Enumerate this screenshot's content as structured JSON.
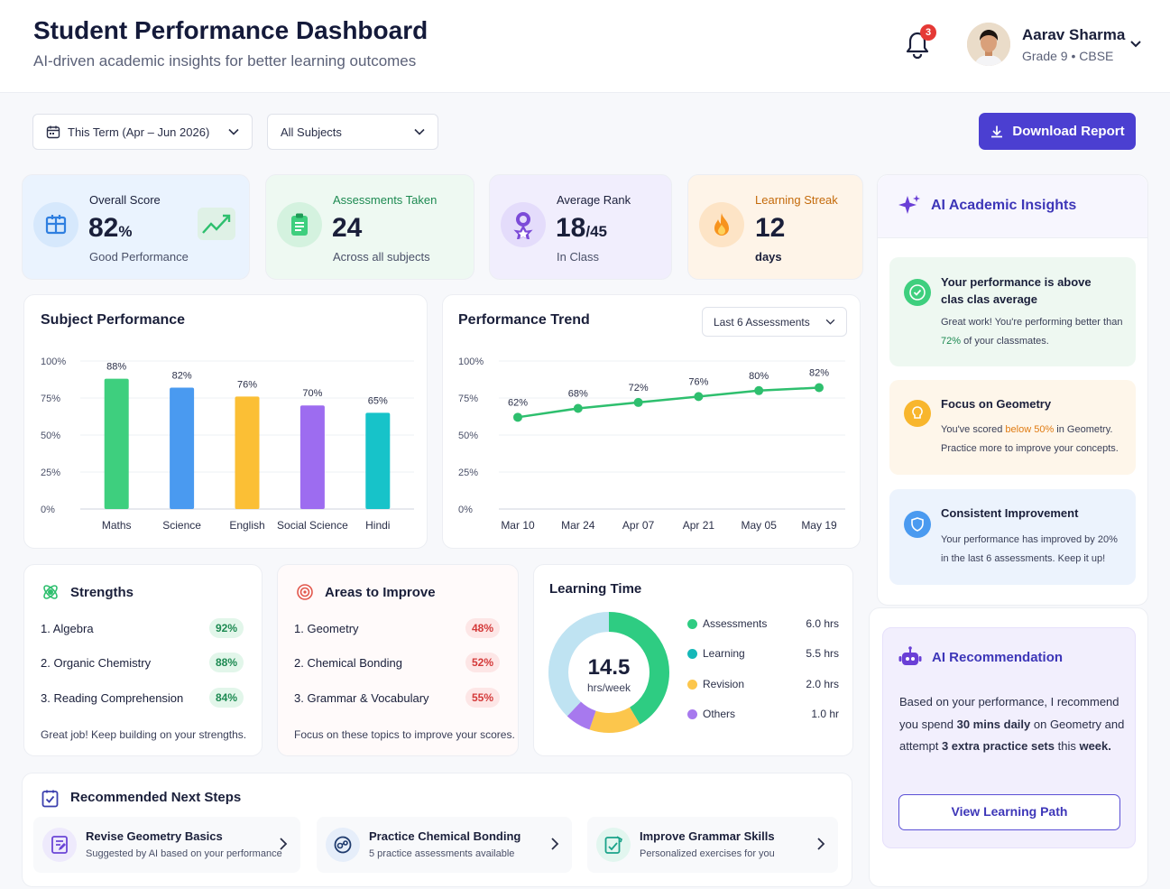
{
  "header": {
    "title": "Student Performance Dashboard",
    "subtitle": "AI-driven academic insights for better learning outcomes",
    "notification_count": "3",
    "user_name": "Aarav Sharma",
    "user_grade": "Grade 9 • CBSE"
  },
  "filters": {
    "term": "This Term (Apr – Jun 2026)",
    "subject": "All Subjects",
    "download": "Download Report"
  },
  "stats": [
    {
      "label": "Overall Score",
      "value": "82",
      "unit": "%",
      "sub": "Good Performance",
      "color": "#1f5fbf"
    },
    {
      "label": "Assessments Taken",
      "value": "24",
      "unit": "",
      "sub": "Across all subjects",
      "color": "#1d8a52"
    },
    {
      "label": "Average Rank",
      "value": "18",
      "unit": "/45",
      "sub": "In Class",
      "color": "#1a1f3a"
    },
    {
      "label": "Learning Streak",
      "value": "12",
      "unit": "",
      "sub": "days",
      "color": "#c46a0b"
    }
  ],
  "subject_performance": {
    "title": "Subject Performance",
    "y_ticks": [
      "100%",
      "75%",
      "50%",
      "25%",
      "0%"
    ]
  },
  "performance_trend": {
    "title": "Performance Trend",
    "range": "Last 6 Assessments",
    "y_ticks": [
      "100%",
      "75%",
      "50%",
      "25%",
      "0%"
    ]
  },
  "chart_data": [
    {
      "type": "bar",
      "title": "Subject Performance",
      "categories": [
        "Maths",
        "Science",
        "English",
        "Social Science",
        "Hindi"
      ],
      "values": [
        88,
        82,
        76,
        70,
        65
      ],
      "labels": [
        "88%",
        "82%",
        "76%",
        "70%",
        "65%"
      ],
      "colors": [
        "#3ecf7e",
        "#4a9af0",
        "#fbbf35",
        "#9d6cf0",
        "#17c3c9"
      ],
      "ylim": [
        0,
        100
      ],
      "grid": true
    },
    {
      "type": "line",
      "title": "Performance Trend",
      "x": [
        "Mar 10",
        "Mar 24",
        "Apr 07",
        "Apr 21",
        "May 05",
        "May 19"
      ],
      "values": [
        62,
        68,
        72,
        76,
        80,
        82
      ],
      "labels": [
        "62%",
        "68%",
        "72%",
        "76%",
        "80%",
        "82%"
      ],
      "color": "#2ebf6e",
      "ylim": [
        0,
        100
      ],
      "grid": true
    }
  ],
  "strengths": {
    "title": "Strengths",
    "items": [
      {
        "name": "1. Algebra",
        "score": "92%"
      },
      {
        "name": "2. Organic Chemistry",
        "score": "88%"
      },
      {
        "name": "3. Reading Comprehension",
        "score": "84%"
      }
    ],
    "note": "Great job! Keep building on your strengths."
  },
  "improve": {
    "title": "Areas to Improve",
    "items": [
      {
        "name": "1. Geometry",
        "score": "48%"
      },
      {
        "name": "2. Chemical Bonding",
        "score": "52%"
      },
      {
        "name": "3. Grammar & Vocabulary",
        "score": "55%"
      }
    ],
    "note": "Focus on these topics to improve your scores."
  },
  "learning_time": {
    "title": "Learning Time",
    "total": "14.5",
    "unit": "hrs/week",
    "items": [
      {
        "name": "Assessments",
        "value": "6.0 hrs",
        "hours": 6.0,
        "color": "#2ecc82"
      },
      {
        "name": "Learning",
        "value": "5.5 hrs",
        "hours": 5.5,
        "color": "#15b8b8"
      },
      {
        "name": "Revision",
        "value": "2.0 hrs",
        "hours": 2.0,
        "color": "#fcc64c"
      },
      {
        "name": "Others",
        "value": "1.0 hr",
        "hours": 1.0,
        "color": "#a779ee"
      }
    ]
  },
  "next_steps": {
    "title": "Recommended Next Steps",
    "items": [
      {
        "title": "Revise Geometry Basics",
        "desc": "Suggested by AI based on your performance"
      },
      {
        "title": "Practice Chemical Bonding",
        "desc": "5 practice assessments available"
      },
      {
        "title": "Improve Grammar Skills",
        "desc": "Personalized exercises for you"
      }
    ]
  },
  "insights": {
    "title": "AI Academic Insights",
    "items": [
      {
        "title": "Your performance is above clas clas average",
        "pre": "Great work! You're performing better than ",
        "highlight": "72%",
        "post": " of your classmates."
      },
      {
        "title": "Focus on Geometry",
        "pre": "You've scored ",
        "highlight": "below 50%",
        "post": " in Geometry. Practice more to improve your concepts."
      },
      {
        "title": "Consistent Improvement",
        "pre": "Your performance has improved by 20% in the last 6 assessments. Keep it up!",
        "highlight": "",
        "post": ""
      }
    ]
  },
  "recommendation": {
    "title": "AI Recommendation",
    "t1": "Based on your performance, I recommend you spend ",
    "b1": "30 mins daily",
    "t2": " on Geometry and attempt ",
    "b2": "3 extra practice sets",
    "t3": " this ",
    "b3": "week.",
    "button": "View Learning Path"
  }
}
